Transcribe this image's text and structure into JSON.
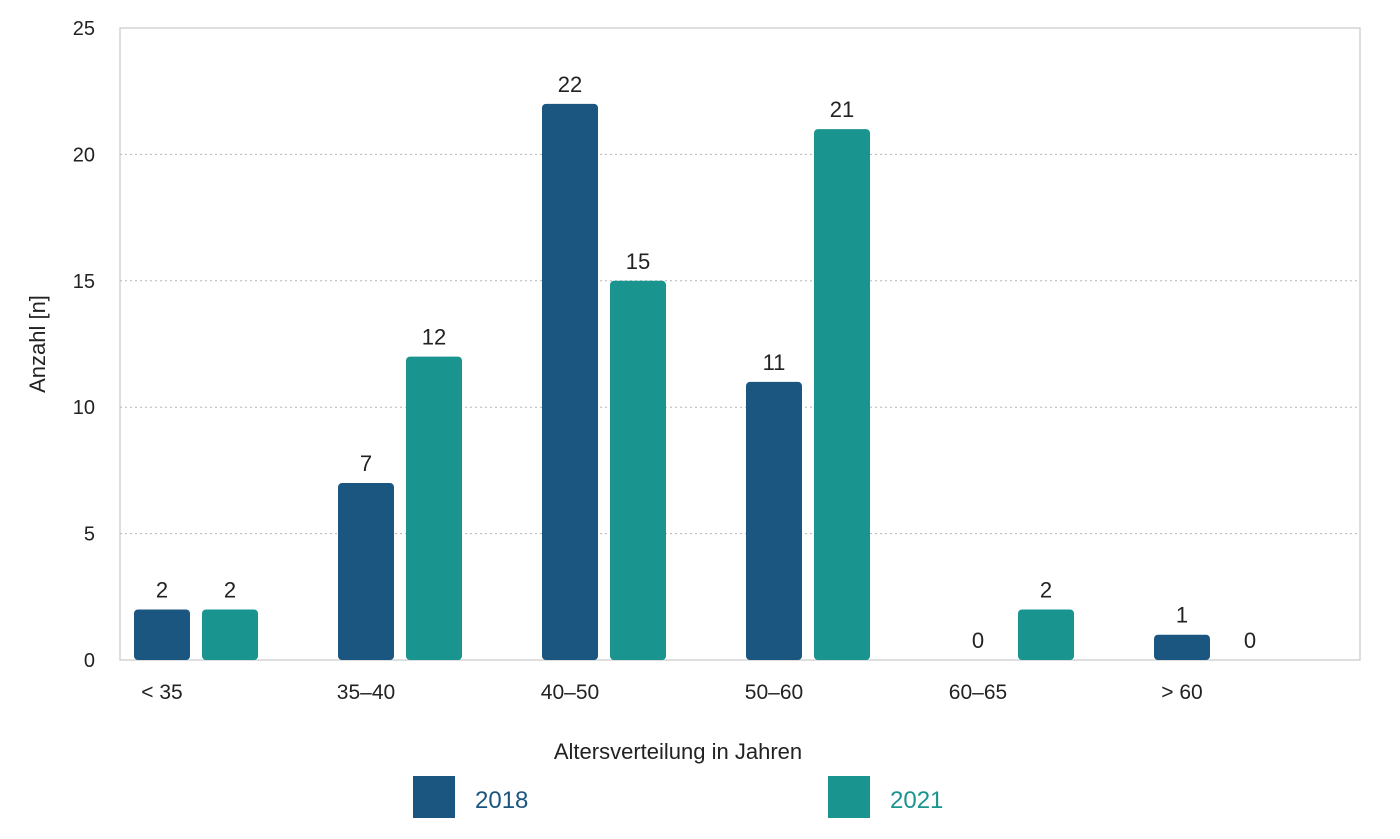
{
  "chart_data": {
    "type": "bar",
    "xlabel": "Altersverteilung in Jahren",
    "ylabel": "Anzahl [n]",
    "ylim": [
      0,
      25
    ],
    "yticks": [
      "0",
      "5",
      "10",
      "15",
      "20",
      "25"
    ],
    "categories": [
      "< 35",
      "35–40",
      "40–50",
      "50–60",
      "60–65",
      "> 60"
    ],
    "series": [
      {
        "name": "2018",
        "color": "#1b5680",
        "values": [
          2,
          7,
          22,
          11,
          0,
          1
        ]
      },
      {
        "name": "2021",
        "color": "#1a948f",
        "values": [
          2,
          12,
          15,
          21,
          2,
          0
        ]
      }
    ],
    "grid": "horizontal-dotted",
    "legend_position": "bottom"
  }
}
